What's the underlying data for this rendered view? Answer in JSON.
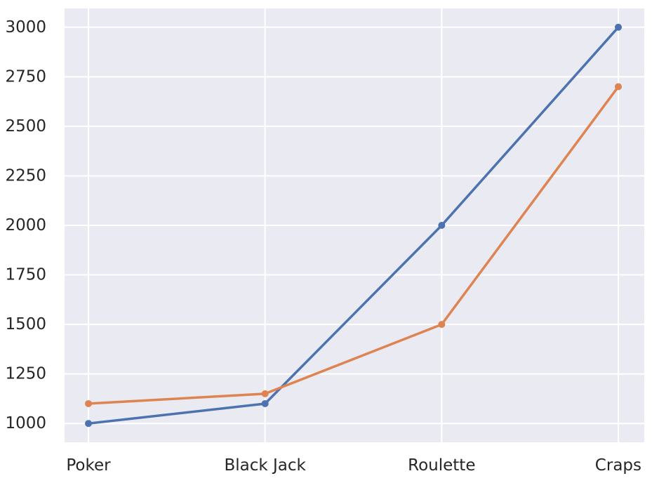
{
  "chart_data": {
    "type": "line",
    "title": "",
    "xlabel": "",
    "ylabel": "",
    "categories": [
      "Poker",
      "Black Jack",
      "Roulette",
      "Craps"
    ],
    "ylim": [
      905,
      3095
    ],
    "yticks": [
      1000,
      1250,
      1500,
      1750,
      2000,
      2250,
      2500,
      2750,
      3000
    ],
    "grid": true,
    "legend": "none",
    "background_color": "#eaeaf2",
    "grid_color": "#ffffff",
    "series": [
      {
        "values": [
          1000,
          1100,
          2000,
          3000
        ],
        "color": "#4c72b0",
        "marker": "circle"
      },
      {
        "values": [
          1100,
          1150,
          1500,
          2700
        ],
        "color": "#dd8452",
        "marker": "circle"
      }
    ]
  }
}
